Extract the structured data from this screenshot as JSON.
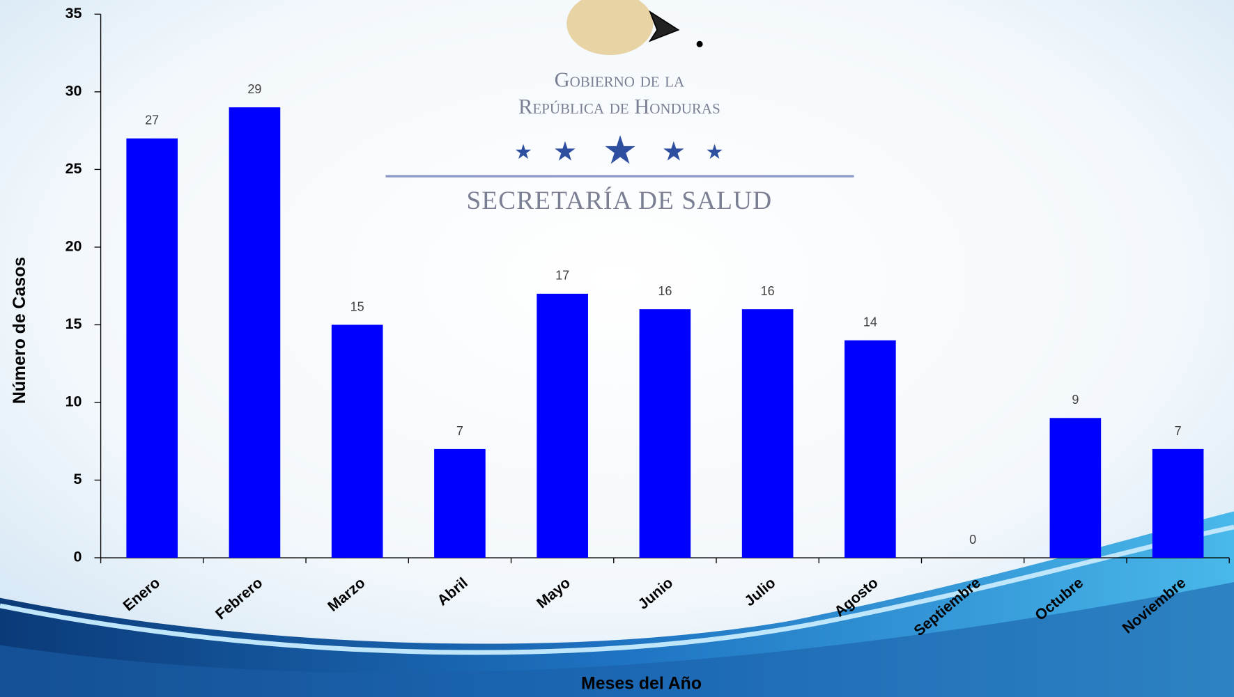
{
  "logo": {
    "line1": "Gobierno de la",
    "line2": "República de Honduras",
    "line3": "SECRETARÍA DE SALUD"
  },
  "chart_data": {
    "type": "bar",
    "categories": [
      "Enero",
      "Febrero",
      "Marzo",
      "Abril",
      "Mayo",
      "Junio",
      "Julio",
      "Agosto",
      "Septiembre",
      "Octubre",
      "Noviembre"
    ],
    "values": [
      27,
      29,
      15,
      7,
      17,
      16,
      16,
      14,
      0,
      9,
      7
    ],
    "color": "#0000ff",
    "x_label": "Meses del Año",
    "y_label": "Número de Casos",
    "ylim": [
      0,
      35
    ],
    "yticks": [
      0,
      5,
      10,
      15,
      20,
      25,
      30,
      35
    ],
    "grid": false
  }
}
